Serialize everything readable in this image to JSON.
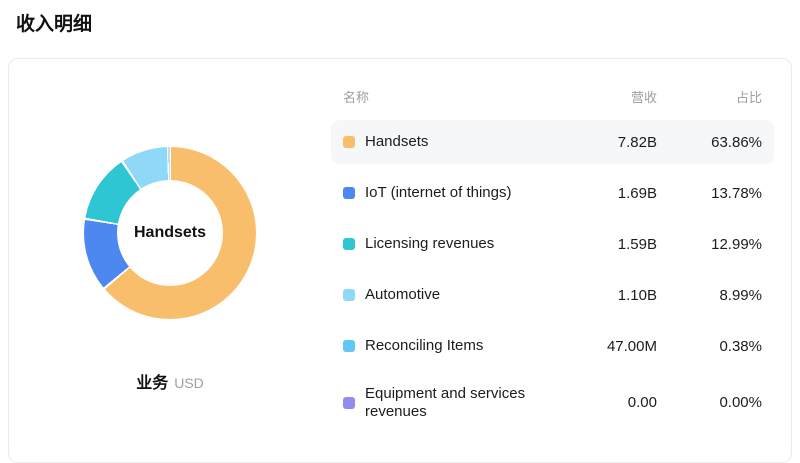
{
  "page": {
    "title": "收入明细"
  },
  "chart": {
    "center_label": "Handsets",
    "caption": "业务",
    "unit": "USD"
  },
  "table": {
    "headers": {
      "name": "名称",
      "revenue": "营收",
      "share": "占比"
    },
    "rows": [
      {
        "name": "Handsets",
        "revenue": "7.82B",
        "share": "63.86%",
        "color": "#F9BE6B",
        "highlighted": true
      },
      {
        "name": "IoT (internet of things)",
        "revenue": "1.69B",
        "share": "13.78%",
        "color": "#4D88F0",
        "highlighted": false
      },
      {
        "name": "Licensing revenues",
        "revenue": "1.59B",
        "share": "12.99%",
        "color": "#2EC6D2",
        "highlighted": false
      },
      {
        "name": "Automotive",
        "revenue": "1.10B",
        "share": "8.99%",
        "color": "#8FD8F8",
        "highlighted": false
      },
      {
        "name": "Reconciling Items",
        "revenue": "47.00M",
        "share": "0.38%",
        "color": "#63C6F3",
        "highlighted": false
      },
      {
        "name": "Equipment and services revenues",
        "revenue": "0.00",
        "share": "0.00%",
        "color": "#948BEF",
        "highlighted": false
      }
    ]
  },
  "chart_data": {
    "type": "pie",
    "title": "收入明细",
    "center_label": "Handsets",
    "unit": "USD",
    "legend_position": "right",
    "categories": [
      "Handsets",
      "IoT (internet of things)",
      "Licensing revenues",
      "Automotive",
      "Reconciling Items",
      "Equipment and services revenues"
    ],
    "values_pct": [
      63.86,
      13.78,
      12.99,
      8.99,
      0.38,
      0
    ],
    "values": [
      "7.82B",
      "1.69B",
      "1.59B",
      "1.10B",
      "47.00M",
      "0.00"
    ],
    "colors": [
      "#F9BE6B",
      "#4D88F0",
      "#2EC6D2",
      "#8FD8F8",
      "#63C6F3",
      "#948BEF"
    ],
    "start_angle_deg": 0,
    "direction": "clockwise",
    "donut": true
  }
}
